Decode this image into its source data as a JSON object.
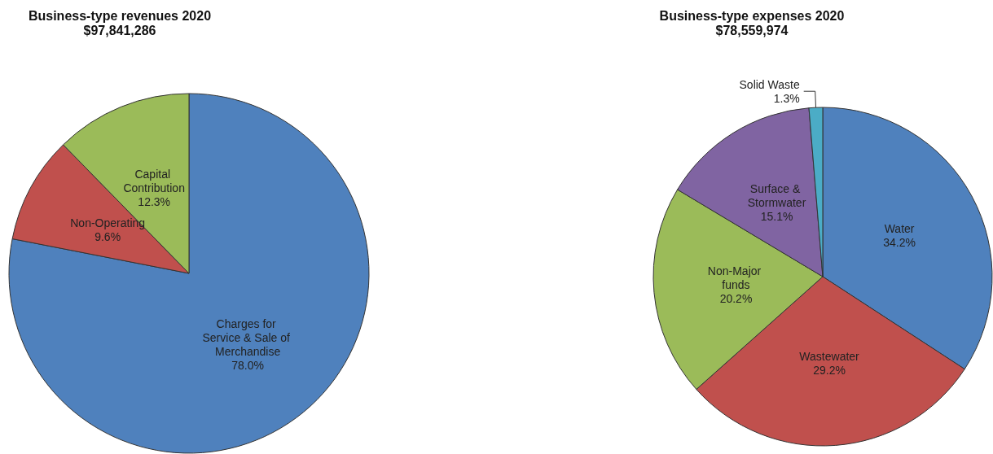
{
  "chart_data": [
    {
      "type": "pie",
      "title": "Business-type revenues 2020",
      "subtitle": "$97,841,286",
      "categories": [
        "Charges for Service & Sale of Merchandise",
        "Non-Operating",
        "Capital Contribution"
      ],
      "values": [
        78.0,
        9.6,
        12.3
      ],
      "value_labels": [
        "78.0%",
        "9.6%",
        "12.3%"
      ],
      "colors": [
        "#4f81bd",
        "#c0504d",
        "#9bbb59"
      ]
    },
    {
      "type": "pie",
      "title": "Business-type expenses 2020",
      "subtitle": "$78,559,974",
      "categories": [
        "Water",
        "Wastewater",
        "Non-Major funds",
        "Surface & Stormwater",
        "Solid Waste"
      ],
      "values": [
        34.2,
        29.2,
        20.2,
        15.1,
        1.3
      ],
      "value_labels": [
        "34.2%",
        "29.2%",
        "20.2%",
        "15.1%",
        "1.3%"
      ],
      "colors": [
        "#4f81bd",
        "#c0504d",
        "#9bbb59",
        "#8064a2",
        "#4bacc6"
      ]
    }
  ]
}
